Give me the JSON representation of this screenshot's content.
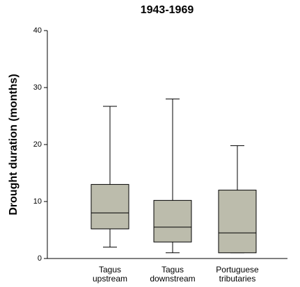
{
  "chart_data": {
    "type": "box",
    "title": "1943-1969",
    "y_label": "Drought duration (months)",
    "categories": [
      [
        "Tagus",
        "upstream"
      ],
      [
        "Tagus",
        "downstream"
      ],
      [
        "Portuguese",
        "tributaries"
      ]
    ],
    "color": "#bcbcac",
    "boxes": [
      {
        "min": 2.0,
        "q1": 5.2,
        "median": 8.0,
        "q3": 13.0,
        "max": 26.7
      },
      {
        "min": 1.0,
        "q1": 2.9,
        "median": 5.5,
        "q3": 10.2,
        "max": 28.0
      },
      {
        "min": 1.0,
        "q1": 1.0,
        "median": 4.5,
        "q3": 12.0,
        "max": 19.8
      }
    ],
    "ylim": [
      0,
      40
    ],
    "yticks": [
      0,
      10,
      20,
      30,
      40
    ],
    "grid": false
  }
}
